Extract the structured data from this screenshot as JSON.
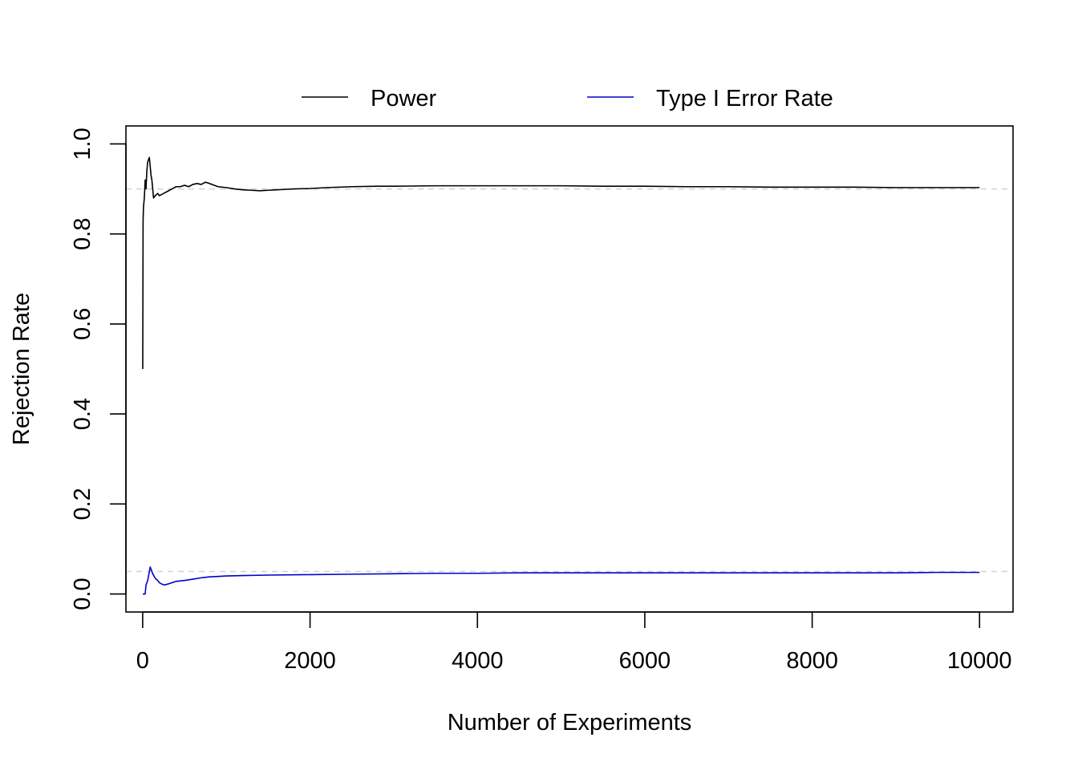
{
  "chart_data": {
    "type": "line",
    "title": "",
    "xlabel": "Number of Experiments",
    "ylabel": "Rejection Rate",
    "xlim": [
      -200,
      10400
    ],
    "ylim": [
      -0.04,
      1.04
    ],
    "x_ticks": [
      0,
      2000,
      4000,
      6000,
      8000,
      10000
    ],
    "x_tick_labels": [
      "0",
      "2000",
      "4000",
      "6000",
      "8000",
      "10000"
    ],
    "y_ticks": [
      0.0,
      0.2,
      0.4,
      0.6,
      0.8,
      1.0
    ],
    "y_tick_labels": [
      "0.0",
      "0.2",
      "0.4",
      "0.6",
      "0.8",
      "1.0"
    ],
    "grid": false,
    "legend_position": "top-center, outside plot",
    "reference_lines": [
      {
        "y": 0.9,
        "style": "dashed",
        "color": "#d3d3d3"
      },
      {
        "y": 0.05,
        "style": "dashed",
        "color": "#d3d3d3"
      }
    ],
    "series": [
      {
        "name": "Power",
        "color": "#000000",
        "x": [
          1,
          5,
          10,
          20,
          30,
          40,
          50,
          60,
          70,
          80,
          90,
          100,
          110,
          120,
          130,
          150,
          180,
          200,
          250,
          300,
          350,
          400,
          450,
          500,
          550,
          600,
          650,
          700,
          750,
          800,
          900,
          1000,
          1100,
          1200,
          1300,
          1400,
          1500,
          1600,
          1700,
          1800,
          2000,
          2200,
          2500,
          2800,
          3000,
          3500,
          4000,
          4500,
          5000,
          5500,
          6000,
          6500,
          7000,
          7500,
          8000,
          8500,
          9000,
          9500,
          10000
        ],
        "y": [
          0.5,
          0.83,
          0.86,
          0.88,
          0.92,
          0.9,
          0.94,
          0.96,
          0.965,
          0.97,
          0.95,
          0.93,
          0.92,
          0.9,
          0.88,
          0.885,
          0.89,
          0.885,
          0.89,
          0.895,
          0.9,
          0.905,
          0.905,
          0.908,
          0.905,
          0.91,
          0.912,
          0.91,
          0.915,
          0.912,
          0.905,
          0.903,
          0.9,
          0.898,
          0.897,
          0.896,
          0.897,
          0.898,
          0.899,
          0.9,
          0.901,
          0.903,
          0.905,
          0.906,
          0.906,
          0.907,
          0.907,
          0.907,
          0.907,
          0.906,
          0.906,
          0.905,
          0.905,
          0.904,
          0.904,
          0.904,
          0.903,
          0.903,
          0.903
        ]
      },
      {
        "name": "Type I Error Rate",
        "color": "#0000cc",
        "x": [
          1,
          5,
          10,
          20,
          30,
          40,
          50,
          60,
          70,
          80,
          90,
          100,
          120,
          150,
          180,
          200,
          230,
          260,
          300,
          350,
          400,
          500,
          600,
          700,
          800,
          900,
          1000,
          1200,
          1500,
          2000,
          2500,
          3000,
          3500,
          4000,
          4500,
          5000,
          5500,
          6000,
          6500,
          7000,
          7500,
          8000,
          8500,
          9000,
          9500,
          10000
        ],
        "y": [
          0.0,
          0.0,
          0.0,
          0.0,
          0.0,
          0.02,
          0.025,
          0.03,
          0.04,
          0.05,
          0.06,
          0.055,
          0.045,
          0.035,
          0.03,
          0.025,
          0.022,
          0.02,
          0.022,
          0.025,
          0.028,
          0.03,
          0.033,
          0.036,
          0.038,
          0.039,
          0.04,
          0.041,
          0.042,
          0.043,
          0.044,
          0.045,
          0.046,
          0.046,
          0.047,
          0.047,
          0.047,
          0.047,
          0.047,
          0.047,
          0.047,
          0.047,
          0.047,
          0.047,
          0.048,
          0.048
        ]
      }
    ]
  }
}
